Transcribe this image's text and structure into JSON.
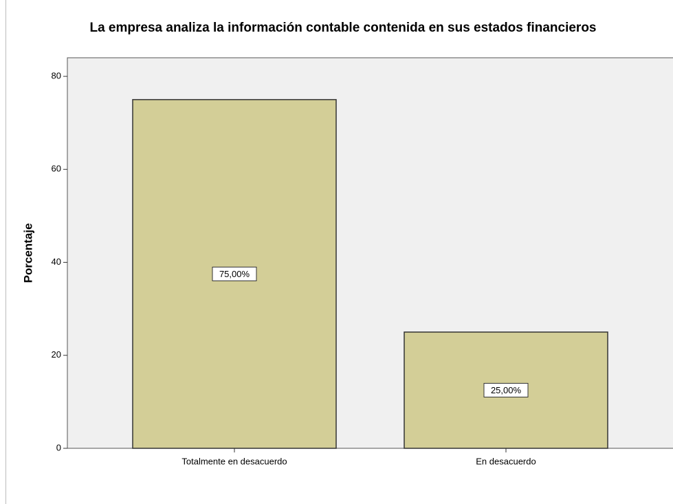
{
  "chart_data": {
    "type": "bar",
    "title": "La empresa analiza la información contable contenida en sus estados financieros",
    "ylabel": "Porcentaje",
    "categories": [
      "Totalmente en desacuerdo",
      "En desacuerdo"
    ],
    "values": [
      75,
      25
    ],
    "value_labels": [
      "75,00%",
      "25,00%"
    ],
    "color": "#d3ce97",
    "ylim": [
      0,
      84
    ],
    "yticks": [
      0,
      20,
      40,
      60,
      80
    ]
  }
}
